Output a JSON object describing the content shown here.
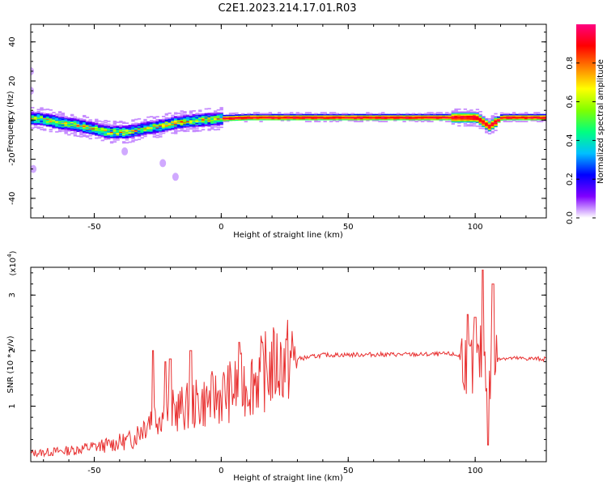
{
  "title": "C2E1.2023.214.17.01.R03",
  "chart_data": [
    {
      "type": "heatmap",
      "xlabel": "Height of straight line (km)",
      "ylabel": "Frequency (Hz)",
      "xlim": [
        -75,
        128
      ],
      "ylim": [
        -50,
        49
      ],
      "xticks": [
        -50,
        0,
        50,
        100
      ],
      "yticks": [
        -40,
        -20,
        0,
        20,
        40
      ],
      "colorbar": {
        "label": "Normalized spectral amplitude",
        "range": [
          0,
          1
        ],
        "ticks": [
          "0.0",
          "0.2",
          "0.4",
          "0.6",
          "0.8"
        ],
        "colormap": [
          "#ffffff",
          "#8000ff",
          "#0000ff",
          "#00c0ff",
          "#00ff80",
          "#80ff00",
          "#ffff00",
          "#ff8000",
          "#ff0000",
          "#ff0080"
        ]
      },
      "ridge": [
        [
          -72,
          1
        ],
        [
          -65,
          -1
        ],
        [
          -55,
          -3
        ],
        [
          -45,
          -6
        ],
        [
          -38,
          -6
        ],
        [
          -30,
          -4
        ],
        [
          -25,
          -3
        ],
        [
          -18,
          -1
        ],
        [
          -10,
          0
        ],
        [
          0,
          1
        ],
        [
          10,
          1.5
        ],
        [
          30,
          1.5
        ],
        [
          50,
          1.5
        ],
        [
          80,
          1.5
        ],
        [
          100,
          1.5
        ],
        [
          105,
          -3
        ],
        [
          110,
          1.5
        ],
        [
          128,
          1.5
        ]
      ],
      "scattered_blobs": [
        [
          -75,
          25
        ],
        [
          -75,
          15
        ],
        [
          -74,
          -25
        ],
        [
          -38,
          -16
        ],
        [
          -18,
          -29
        ],
        [
          -23,
          -22
        ]
      ]
    },
    {
      "type": "line",
      "xlabel": "Height of straight line (km)",
      "ylabel": "SNR (10 * v/v)",
      "exponent_label": "(x10",
      "exponent_sup": "4",
      "exponent_close": ")",
      "xlim": [
        -75,
        128
      ],
      "ylim": [
        0,
        3.5
      ],
      "xticks": [
        -50,
        0,
        50,
        100
      ],
      "yticks": [
        1,
        2,
        3
      ],
      "color": "#e83030",
      "envelope": [
        [
          -75,
          0.15
        ],
        [
          -60,
          0.2
        ],
        [
          -45,
          0.3
        ],
        [
          -35,
          0.4
        ],
        [
          -28,
          0.8
        ],
        [
          -20,
          0.9
        ],
        [
          -12,
          1.0
        ],
        [
          -5,
          1.1
        ],
        [
          0,
          1.2
        ],
        [
          5,
          1.3
        ],
        [
          10,
          1.4
        ],
        [
          15,
          1.55
        ],
        [
          20,
          1.7
        ],
        [
          25,
          1.8
        ],
        [
          30,
          1.85
        ],
        [
          40,
          1.92
        ],
        [
          60,
          1.93
        ],
        [
          80,
          1.93
        ],
        [
          90,
          1.94
        ],
        [
          95,
          1.9
        ],
        [
          100,
          1.6
        ],
        [
          103,
          2.0
        ],
        [
          106,
          1.5
        ],
        [
          108,
          1.87
        ],
        [
          115,
          1.86
        ],
        [
          128,
          1.85
        ]
      ],
      "spikes": [
        [
          -27,
          2.0
        ],
        [
          -22,
          1.8
        ],
        [
          -20,
          1.85
        ],
        [
          -12,
          2.0
        ],
        [
          7,
          2.15
        ],
        [
          97,
          2.65
        ],
        [
          100,
          2.6
        ],
        [
          103,
          3.45
        ],
        [
          105,
          0.3
        ],
        [
          107,
          3.2
        ]
      ]
    }
  ]
}
